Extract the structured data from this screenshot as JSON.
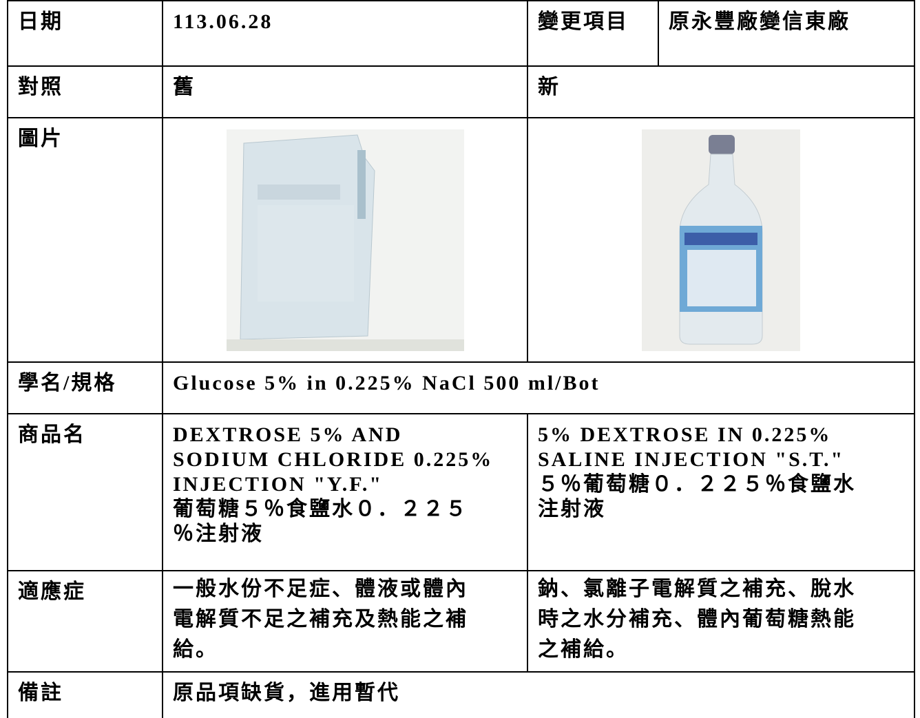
{
  "table": {
    "rows": [
      [
        "日期",
        "113.06.28",
        "變更項目",
        "原永豐廠變信東廠"
      ],
      [
        "對照",
        "舊",
        "新"
      ],
      [
        "圖片"
      ],
      [
        "學名/規格",
        "Glucose 5% in 0.225% NaCl 500 ml/Bot"
      ],
      [
        "商品名",
        [
          "DEXTROSE 5% AND",
          "SODIUM CHLORIDE 0.225%",
          "INJECTION \"Y.F.\"",
          "葡萄糖５％食鹽水０．２２５",
          "％注射液"
        ],
        [
          "5% DEXTROSE IN 0.225%",
          "SALINE INJECTION \"S.T.\"",
          "５％葡萄糖０．２２５％食鹽水",
          "注射液"
        ]
      ],
      [
        "適應症",
        [
          "一般水份不足症、體液或體內",
          "電解質不足之補充及熱能之補",
          "給。"
        ],
        [
          "鈉、氯離子電解質之補充、脫水",
          "時之水分補充、體內葡萄糖熱能",
          "之補給。"
        ]
      ],
      [
        "備註",
        "原品項缺貨，進用暫代"
      ]
    ]
  }
}
